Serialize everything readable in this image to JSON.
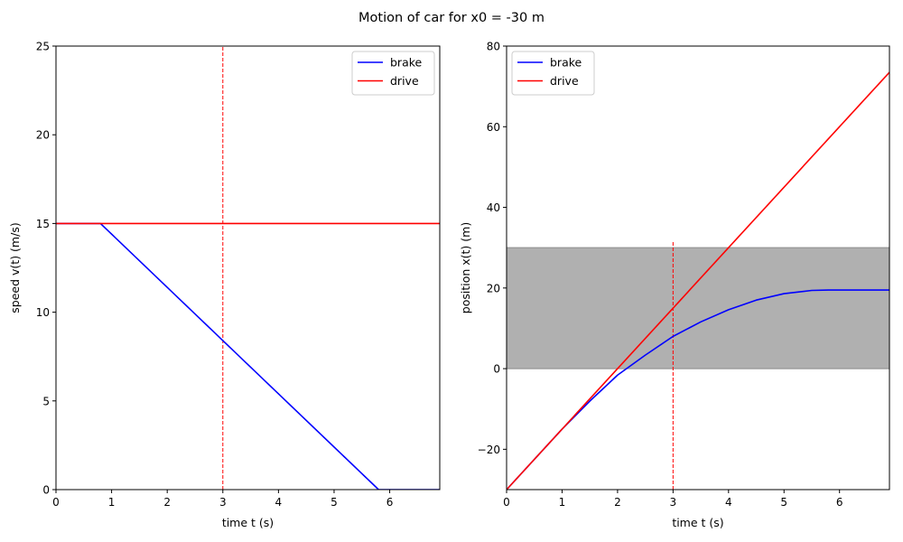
{
  "figure": {
    "title": "Motion of car for x0 = -30 m"
  },
  "chart_data": [
    {
      "type": "line",
      "xlabel": "time t (s)",
      "ylabel": "speed v(t) (m/s)",
      "xlim": [
        0,
        6.9
      ],
      "ylim": [
        0,
        25
      ],
      "xticks": [
        "0",
        "1",
        "2",
        "3",
        "4",
        "5",
        "6"
      ],
      "yticks": [
        "0",
        "5",
        "10",
        "15",
        "20",
        "25"
      ],
      "grid": false,
      "legend_position": "top-right",
      "series": [
        {
          "name": "brake",
          "color": "#0000ff",
          "x": [
            0,
            0.8,
            5.8,
            6.9
          ],
          "y": [
            15,
            15,
            0,
            0
          ]
        },
        {
          "name": "drive",
          "color": "#ff0000",
          "x": [
            0,
            6.9
          ],
          "y": [
            15,
            15
          ]
        }
      ],
      "vline": {
        "x": 3,
        "color": "#ff0000",
        "style": "dashed",
        "ymin": 0,
        "ymax": 25
      }
    },
    {
      "type": "line",
      "xlabel": "time t (s)",
      "ylabel": "position x(t) (m)",
      "xlim": [
        0,
        6.9
      ],
      "ylim": [
        -30,
        80
      ],
      "xticks": [
        "0",
        "1",
        "2",
        "3",
        "4",
        "5",
        "6"
      ],
      "yticks": [
        "−20",
        "0",
        "20",
        "40",
        "60",
        "80"
      ],
      "grid": false,
      "legend_position": "top-left",
      "series": [
        {
          "name": "brake",
          "color": "#0000ff",
          "x": [
            0,
            0.8,
            1.0,
            1.5,
            2.0,
            2.5,
            3.0,
            3.5,
            4.0,
            4.5,
            5.0,
            5.5,
            5.8,
            6.0,
            6.5,
            6.9
          ],
          "y": [
            -30,
            -18,
            -15,
            -8.05,
            -1.6,
            3.35,
            8,
            11.6,
            14.6,
            17.0,
            18.6,
            19.4,
            19.5,
            19.5,
            19.5,
            19.5
          ]
        },
        {
          "name": "drive",
          "color": "#ff0000",
          "x": [
            0,
            6.9
          ],
          "y": [
            -30,
            73.5
          ]
        }
      ],
      "band": {
        "y0": 0,
        "y1": 30,
        "color": "#b0b0b0"
      },
      "vline": {
        "x": 3,
        "color": "#ff0000",
        "style": "dashed",
        "ymin": -30,
        "ymax": 31.5
      }
    }
  ]
}
